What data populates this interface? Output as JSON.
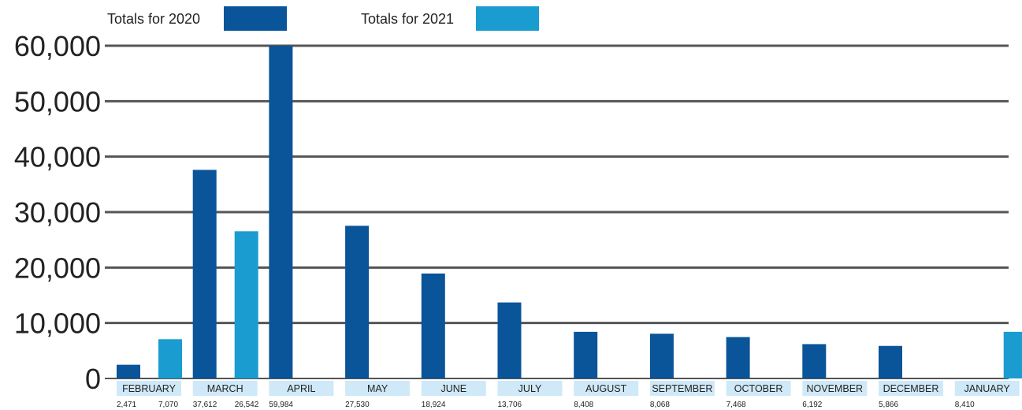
{
  "chart_data": {
    "type": "bar",
    "categories": [
      "FEBRUARY",
      "MARCH",
      "APRIL",
      "MAY",
      "JUNE",
      "JULY",
      "AUGUST",
      "SEPTEMBER",
      "OCTOBER",
      "NOVEMBER",
      "DECEMBER",
      "JANUARY"
    ],
    "series": [
      {
        "name": "Totals for 2020",
        "color": "#0a5499",
        "values": [
          2471,
          37612,
          59984,
          27530,
          18924,
          13706,
          8408,
          8068,
          7468,
          6192,
          5866,
          null
        ]
      },
      {
        "name": "Totals for 2021",
        "color": "#1a9cd0",
        "values": [
          7070,
          26542,
          null,
          null,
          null,
          null,
          null,
          null,
          null,
          null,
          null,
          8410
        ]
      }
    ],
    "value_labels": [
      [
        "2,471",
        "7,070"
      ],
      [
        "37,612",
        "26,542"
      ],
      [
        "59,984"
      ],
      [
        "27,530"
      ],
      [
        "18,924"
      ],
      [
        "13,706"
      ],
      [
        "8,408"
      ],
      [
        "8,068"
      ],
      [
        "7,468"
      ],
      [
        "6,192"
      ],
      [
        "5,866"
      ],
      [
        "8,410"
      ]
    ],
    "yticks": [
      "0",
      "10,000",
      "20,000",
      "30,000",
      "40,000",
      "50,000",
      "60,000"
    ],
    "ylim": [
      0,
      60000
    ],
    "grid": true,
    "legend": "top-left",
    "category_label_bg": "#cfe9f8",
    "gridline_color": "#555555"
  }
}
